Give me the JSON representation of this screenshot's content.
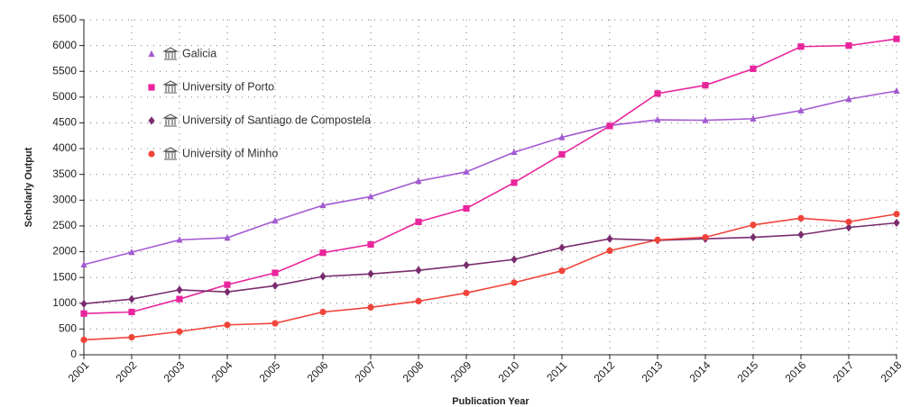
{
  "chart_data": {
    "type": "line",
    "x_label": "Publication Year",
    "y_label": "Scholarly Output",
    "x": [
      2001,
      2002,
      2003,
      2004,
      2005,
      2006,
      2007,
      2008,
      2009,
      2010,
      2011,
      2012,
      2013,
      2014,
      2015,
      2016,
      2017,
      2018
    ],
    "xlim": [
      2001,
      2018
    ],
    "ylim": [
      0,
      6500
    ],
    "yticks": [
      0,
      500,
      1000,
      1500,
      2000,
      2500,
      3000,
      3500,
      4000,
      4500,
      5000,
      5500,
      6000,
      6500
    ],
    "grid": true,
    "legend": "upper left",
    "series": [
      {
        "name": "Galicia",
        "color": "#a25ad0",
        "marker": "triangle",
        "values": [
          1750,
          1990,
          2230,
          2270,
          2600,
          2900,
          3070,
          3370,
          3550,
          3930,
          4220,
          4450,
          4560,
          4550,
          4580,
          4740,
          4960,
          5120
        ]
      },
      {
        "name": "University of Porto",
        "color": "#e8259c",
        "marker": "square",
        "values": [
          800,
          830,
          1080,
          1360,
          1590,
          1980,
          2140,
          2580,
          2840,
          3340,
          3890,
          4440,
          5070,
          5230,
          5550,
          5980,
          6000,
          6130
        ]
      },
      {
        "name": "University of Santiago de Compostela",
        "color": "#7a2c6e",
        "marker": "diamond",
        "values": [
          990,
          1080,
          1260,
          1220,
          1340,
          1520,
          1570,
          1640,
          1740,
          1850,
          2080,
          2250,
          2220,
          2250,
          2280,
          2330,
          2470,
          2560
        ]
      },
      {
        "name": "University of Minho",
        "color": "#f0443a",
        "marker": "circle",
        "values": [
          290,
          340,
          450,
          580,
          610,
          830,
          920,
          1040,
          1200,
          1400,
          1630,
          2020,
          2230,
          2280,
          2520,
          2650,
          2580,
          2730
        ]
      }
    ]
  }
}
